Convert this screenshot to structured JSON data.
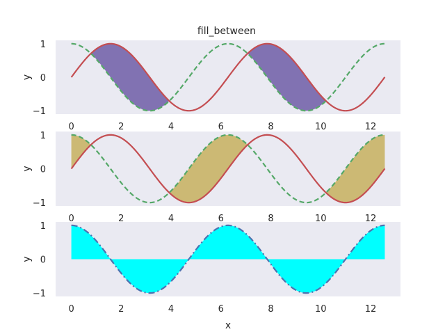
{
  "chart_data": {
    "type": "area",
    "title": "fill_between",
    "xlabel": "x",
    "xlim": [
      -0.63,
      13.2
    ],
    "x_range": [
      0,
      12.57
    ],
    "x_ticks": [
      "0",
      "2",
      "4",
      "6",
      "8",
      "10",
      "12"
    ],
    "x_tick_values": [
      0,
      2,
      4,
      6,
      8,
      10,
      12
    ],
    "panels": [
      {
        "ylabel": "y",
        "ylim": [
          -1.1,
          1.1
        ],
        "y_ticks": [
          "1",
          "0",
          "−1"
        ],
        "y_tick_values": [
          1,
          0,
          -1
        ],
        "series": [
          {
            "function": "sin(x)",
            "color": "#c44e52",
            "style": "solid"
          },
          {
            "function": "cos(x)",
            "color": "#55a868",
            "style": "dashed"
          }
        ],
        "fill": {
          "between": [
            "sin(x)",
            "cos(x)"
          ],
          "where": "sin(x) > cos(x)",
          "color": "#8172b2"
        }
      },
      {
        "ylabel": "y",
        "ylim": [
          -1.1,
          1.1
        ],
        "y_ticks": [
          "1",
          "0",
          "−1"
        ],
        "y_tick_values": [
          1,
          0,
          -1
        ],
        "series": [
          {
            "function": "sin(x)",
            "color": "#c44e52",
            "style": "solid"
          },
          {
            "function": "cos(x)",
            "color": "#55a868",
            "style": "dashed"
          }
        ],
        "fill": {
          "between": [
            "cos(x)",
            "sin(x)"
          ],
          "where": "cos(x) > sin(x)",
          "color": "#ccb974"
        }
      },
      {
        "ylabel": "y",
        "ylim": [
          -1.1,
          1.1
        ],
        "y_ticks": [
          "1",
          "0",
          "−1"
        ],
        "y_tick_values": [
          1,
          0,
          -1
        ],
        "series": [
          {
            "function": "cos(x)",
            "color": "#4c72b0",
            "style": "dashdot"
          }
        ],
        "fill": {
          "between": [
            "cos(x)",
            "0"
          ],
          "where": "all",
          "color": "#00ffff"
        }
      }
    ]
  }
}
